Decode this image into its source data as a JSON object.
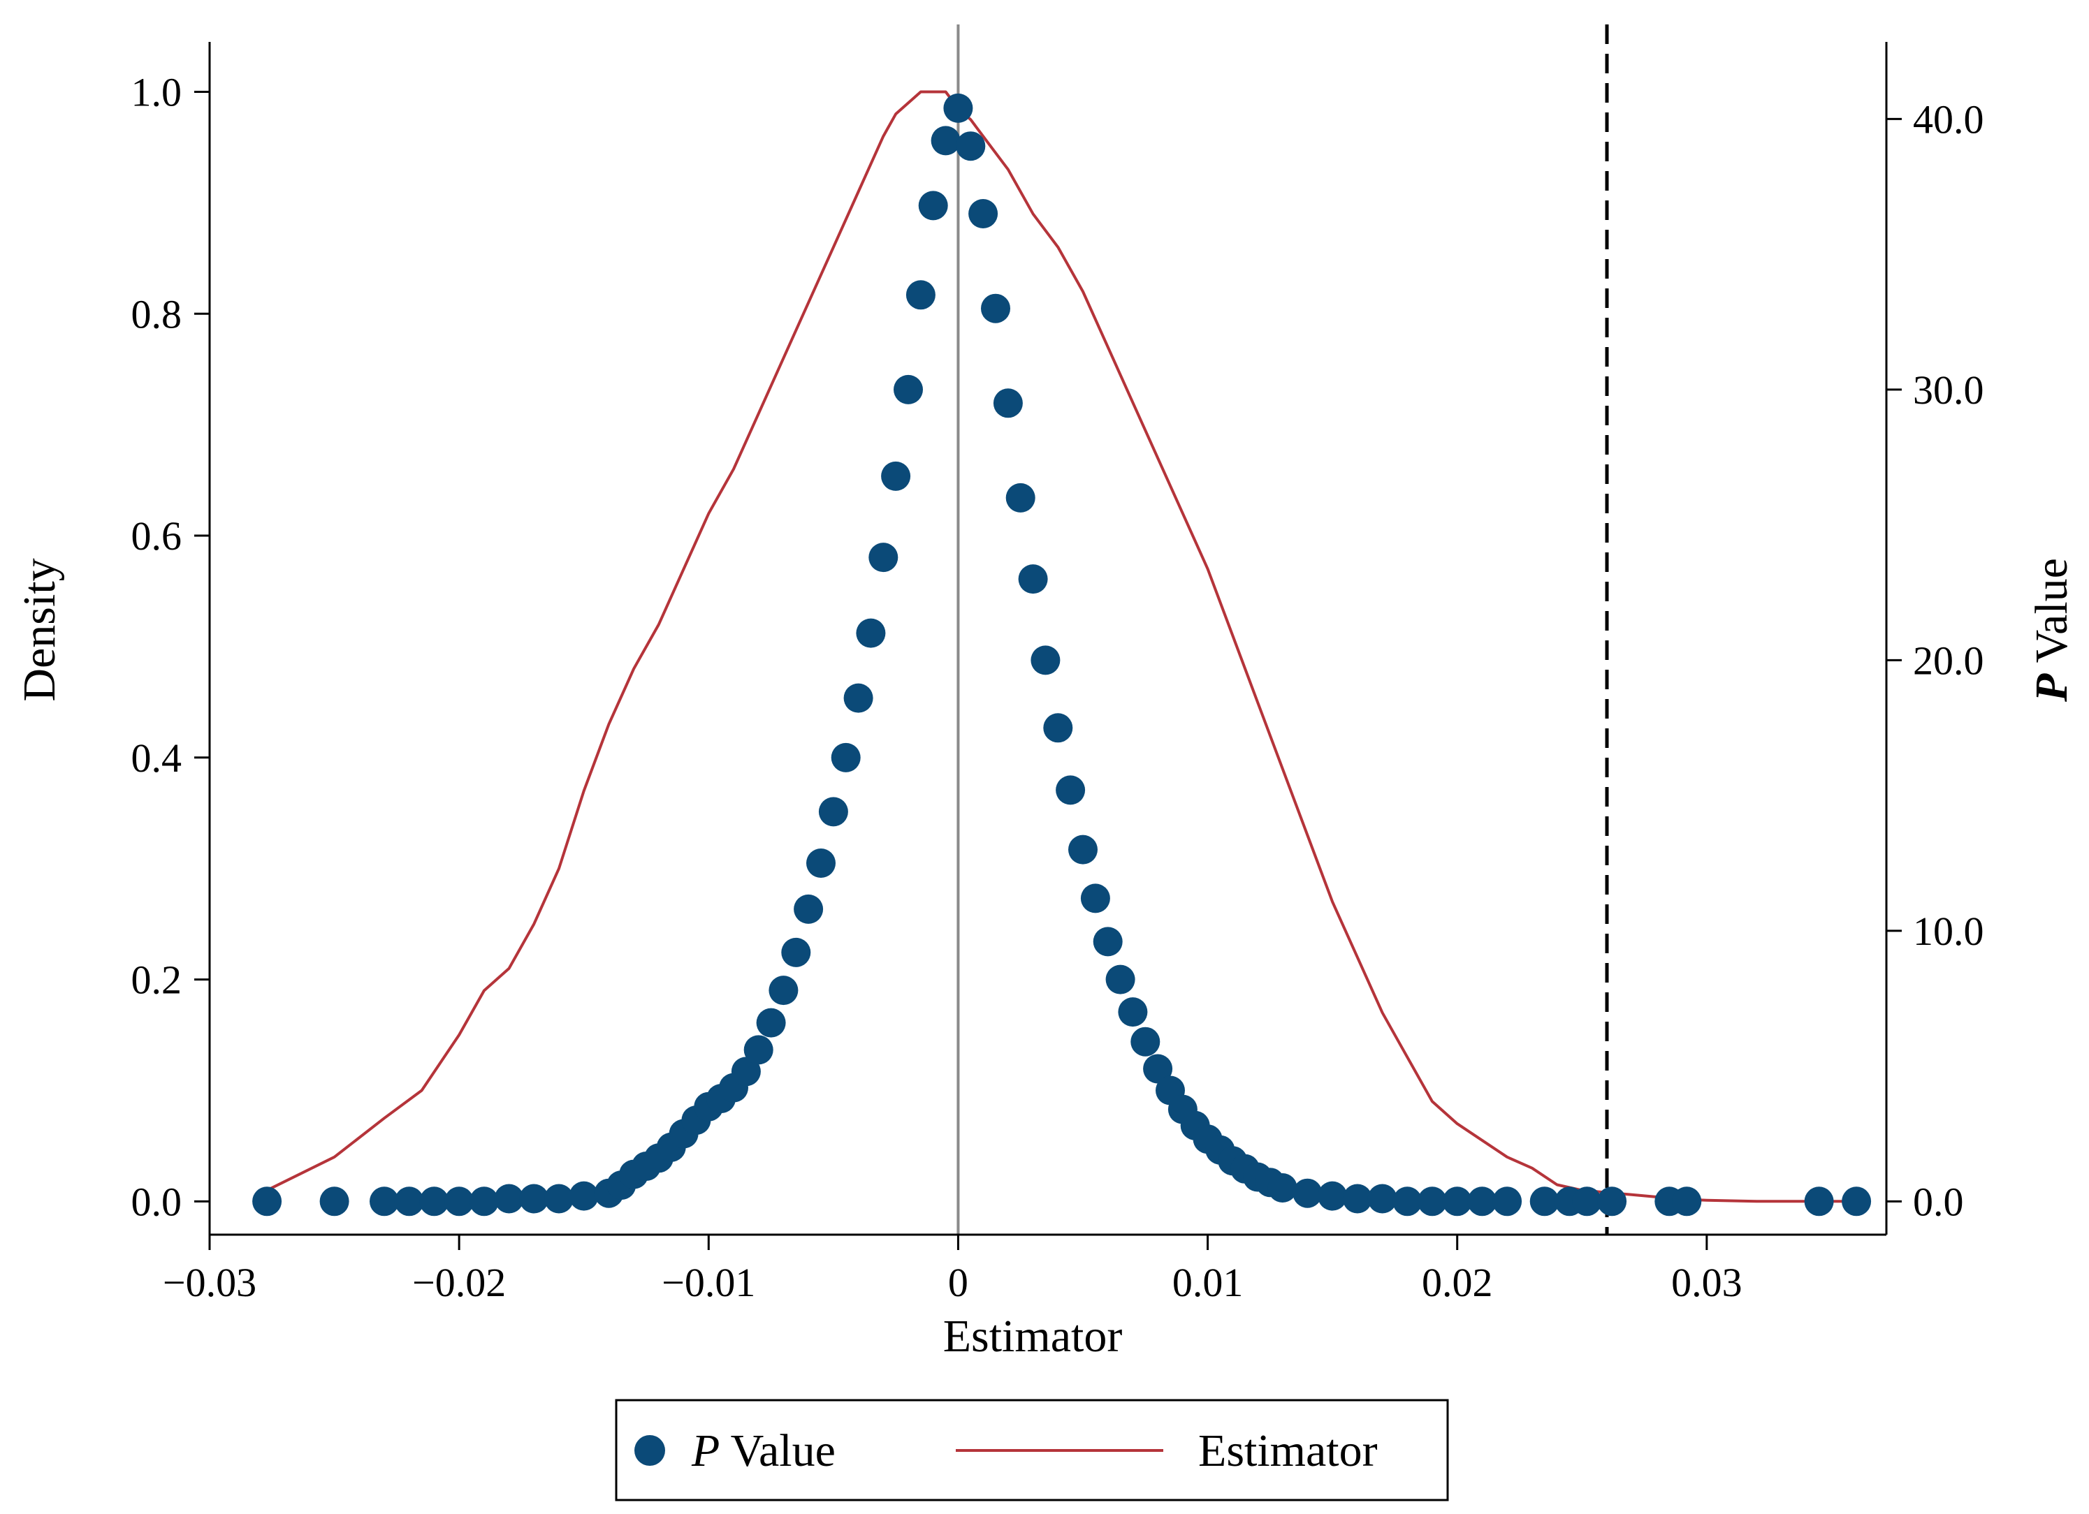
{
  "chart_data": {
    "type": "scatter",
    "xlabel": "Estimator",
    "ylabel_left": "Density",
    "ylabel_right_italic": "P",
    "ylabel_right_rest": " Value",
    "xlim": [
      -0.03,
      0.0372
    ],
    "ylim_left": [
      -0.03,
      1.045
    ],
    "ylim_right": [
      -1.23,
      42.85
    ],
    "x_ticks": [
      -0.03,
      -0.02,
      -0.01,
      0,
      0.01,
      0.02,
      0.03
    ],
    "x_tick_labels": [
      "−0.03",
      "−0.02",
      "−0.01",
      "0",
      "0.01",
      "0.02",
      "0.03"
    ],
    "left_ticks": [
      0,
      0.2,
      0.4,
      0.6,
      0.8,
      1.0
    ],
    "left_tick_labels": [
      "0.0",
      "0.2",
      "0.4",
      "0.6",
      "0.8",
      "1.0"
    ],
    "right_ticks": [
      0,
      10,
      20,
      30,
      40
    ],
    "right_tick_labels": [
      "0.0",
      "10.0",
      "20.0",
      "30.0",
      "40.0"
    ],
    "reference_lines": [
      {
        "name": "zero-line",
        "x": 0,
        "style": "solid"
      },
      {
        "name": "true-estimate-line",
        "x": 0.026,
        "style": "dashed"
      }
    ],
    "legend": [
      {
        "key": "pvalue",
        "italic": "P",
        "rest": " Value",
        "marker": "circle"
      },
      {
        "key": "estimator",
        "label": "Estimator",
        "marker": "line"
      }
    ],
    "colors": {
      "pvalue": "#0b4a78",
      "estimator": "#b5343a",
      "zero_line": "#8a8a8a",
      "axis": "#000000"
    },
    "series": [
      {
        "name": "Estimator",
        "type": "line",
        "axis": "left",
        "x": [
          -0.0277,
          -0.025,
          -0.023,
          -0.0215,
          -0.02,
          -0.019,
          -0.018,
          -0.017,
          -0.016,
          -0.015,
          -0.014,
          -0.013,
          -0.012,
          -0.011,
          -0.01,
          -0.009,
          -0.008,
          -0.007,
          -0.006,
          -0.005,
          -0.004,
          -0.003,
          -0.0025,
          -0.002,
          -0.0015,
          -0.001,
          -0.0005,
          0.0,
          0.0005,
          0.001,
          0.002,
          0.003,
          0.004,
          0.005,
          0.006,
          0.007,
          0.008,
          0.009,
          0.01,
          0.011,
          0.012,
          0.013,
          0.014,
          0.015,
          0.016,
          0.017,
          0.018,
          0.019,
          0.02,
          0.021,
          0.022,
          0.023,
          0.024,
          0.025,
          0.026,
          0.027,
          0.028,
          0.029,
          0.03,
          0.032,
          0.034,
          0.036
        ],
        "y": [
          0.01,
          0.04,
          0.075,
          0.1,
          0.15,
          0.19,
          0.21,
          0.25,
          0.3,
          0.37,
          0.43,
          0.48,
          0.52,
          0.57,
          0.62,
          0.66,
          0.71,
          0.76,
          0.81,
          0.86,
          0.91,
          0.96,
          0.98,
          0.99,
          1.0,
          1.0,
          1.0,
          0.985,
          0.975,
          0.96,
          0.93,
          0.89,
          0.86,
          0.82,
          0.77,
          0.72,
          0.67,
          0.62,
          0.57,
          0.51,
          0.45,
          0.39,
          0.33,
          0.27,
          0.22,
          0.17,
          0.13,
          0.09,
          0.07,
          0.055,
          0.04,
          0.03,
          0.015,
          0.01,
          0.008,
          0.006,
          0.004,
          0.002,
          0.001,
          0.0,
          0.0,
          0.0
        ]
      },
      {
        "name": "P Value",
        "type": "scatter",
        "axis": "right",
        "x": [
          -0.0277,
          -0.025,
          -0.023,
          -0.022,
          -0.021,
          -0.02,
          -0.019,
          -0.018,
          -0.017,
          -0.016,
          -0.015,
          -0.014,
          -0.0135,
          -0.013,
          -0.0125,
          -0.012,
          -0.0115,
          -0.011,
          -0.0105,
          -0.01,
          -0.0095,
          -0.009,
          -0.0085,
          -0.008,
          -0.0075,
          -0.007,
          -0.0065,
          -0.006,
          -0.0055,
          -0.005,
          -0.0045,
          -0.004,
          -0.0035,
          -0.003,
          -0.0025,
          -0.002,
          -0.0015,
          -0.001,
          -0.0005,
          0.0,
          0.0005,
          0.001,
          0.0015,
          0.002,
          0.0025,
          0.003,
          0.0035,
          0.004,
          0.0045,
          0.005,
          0.0055,
          0.006,
          0.0065,
          0.007,
          0.0075,
          0.008,
          0.0085,
          0.009,
          0.0095,
          0.01,
          0.0105,
          0.011,
          0.0115,
          0.012,
          0.0125,
          0.013,
          0.014,
          0.015,
          0.016,
          0.017,
          0.018,
          0.019,
          0.02,
          0.021,
          0.022,
          0.0235,
          0.0245,
          0.0252,
          0.0262,
          0.0285,
          0.0292,
          0.0345,
          0.036
        ],
        "y": [
          0.0,
          0.0,
          0.0,
          0.0,
          0.0,
          0.0,
          0.0,
          0.1,
          0.1,
          0.1,
          0.2,
          0.3,
          0.6,
          1.0,
          1.3,
          1.6,
          2.0,
          2.5,
          3.0,
          3.5,
          3.8,
          4.2,
          4.8,
          5.6,
          6.6,
          7.8,
          9.2,
          10.8,
          12.5,
          14.4,
          16.4,
          18.6,
          21.0,
          23.8,
          26.8,
          30.0,
          33.5,
          36.8,
          39.2,
          40.4,
          39.0,
          36.5,
          33.0,
          29.5,
          26.0,
          23.0,
          20.0,
          17.5,
          15.2,
          13.0,
          11.2,
          9.6,
          8.2,
          7.0,
          5.9,
          4.9,
          4.1,
          3.4,
          2.8,
          2.3,
          1.9,
          1.5,
          1.2,
          0.9,
          0.7,
          0.5,
          0.3,
          0.2,
          0.1,
          0.1,
          0.0,
          0.0,
          0.0,
          0.0,
          0.0,
          0.0,
          0.0,
          0.0,
          0.0,
          0.0,
          0.0,
          0.0,
          0.0
        ]
      }
    ]
  }
}
